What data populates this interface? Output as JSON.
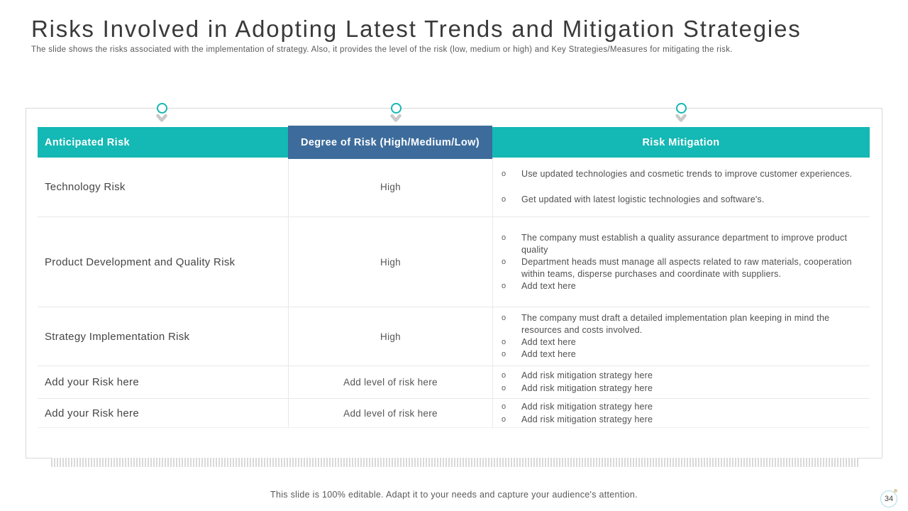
{
  "slide": {
    "title": "Risks Involved in Adopting Latest Trends and Mitigation Strategies",
    "subtitle": "The slide shows the risks associated with the implementation of strategy. Also, it provides the level of the risk (low, medium or high) and Key Strategies/Measures for mitigating the risk.",
    "footer": "This slide is 100% editable. Adapt it to your needs and capture your audience's attention.",
    "page_number": "34"
  },
  "colors": {
    "teal": "#14b8b4",
    "blue": "#3d6c9c",
    "marker_gray": "#c9c9c9"
  },
  "table": {
    "headers": [
      "Anticipated Risk",
      "Degree of Risk (High/Medium/Low)",
      "Risk Mitigation"
    ],
    "rows": [
      {
        "risk": "Technology Risk",
        "degree": "High",
        "mitigation": [
          "Use updated technologies and cosmetic trends to improve customer experiences.",
          "Get updated with latest logistic technologies and software's."
        ]
      },
      {
        "risk": "Product Development and Quality Risk",
        "degree": "High",
        "mitigation": [
          "The company must establish a quality assurance department to improve product quality",
          "Department heads must manage all aspects related to raw materials, cooperation within teams, disperse purchases and coordinate with suppliers.",
          "Add text here"
        ]
      },
      {
        "risk": "Strategy Implementation Risk",
        "degree": "High",
        "mitigation": [
          "The company must draft a detailed implementation plan keeping in mind the resources and costs involved.",
          "Add text here",
          "Add text here"
        ]
      },
      {
        "risk": "Add your Risk here",
        "degree": "Add level of risk here",
        "mitigation": [
          "Add risk mitigation strategy here",
          "Add risk mitigation strategy here"
        ]
      },
      {
        "risk": "Add your Risk here",
        "degree": "Add level of risk here",
        "mitigation": [
          "Add risk mitigation strategy here",
          "Add risk mitigation strategy here"
        ]
      }
    ]
  }
}
